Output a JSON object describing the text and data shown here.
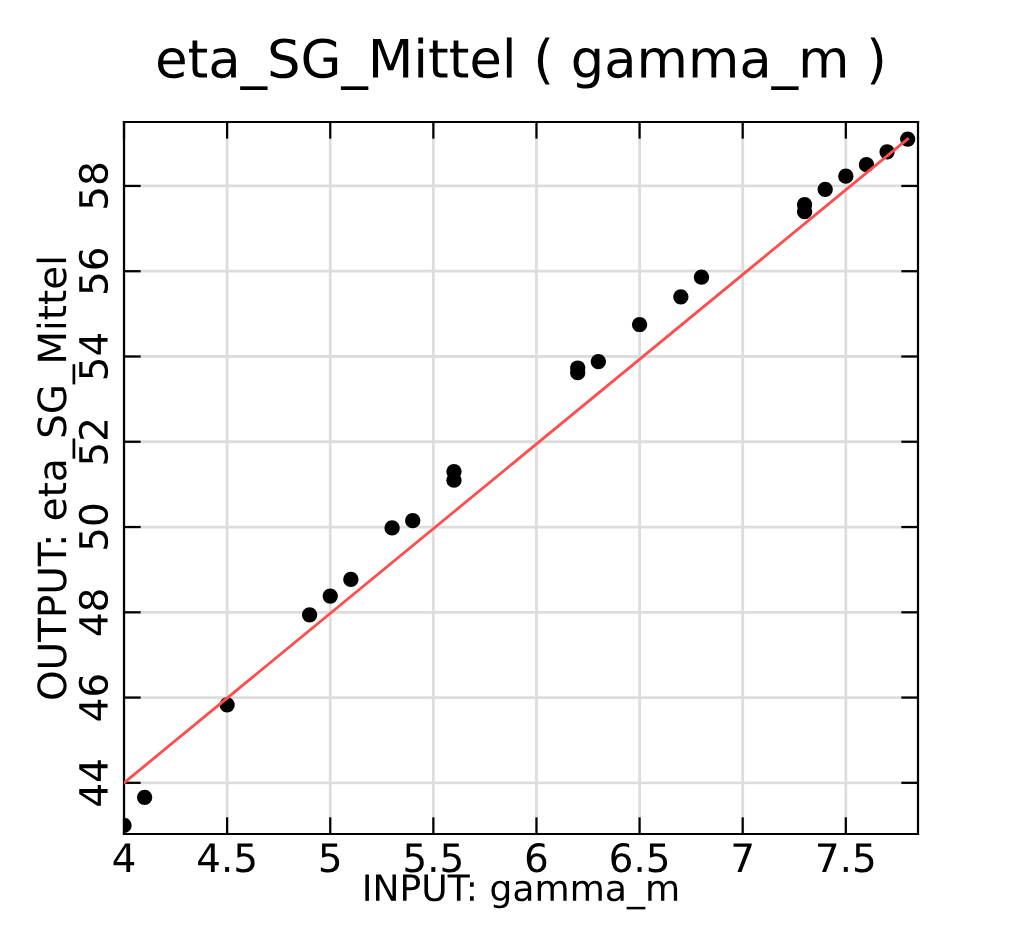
{
  "chart_data": {
    "type": "scatter",
    "title": "eta_SG_Mittel ( gamma_m )",
    "xlabel": "INPUT: gamma_m",
    "ylabel": "OUTPUT: eta_SG_Mittel",
    "xlim": [
      4,
      7.85
    ],
    "ylim": [
      42.8,
      59.5
    ],
    "xticks": [
      4,
      4.5,
      5,
      5.5,
      6,
      6.5,
      7,
      7.5
    ],
    "yticks": [
      44,
      46,
      48,
      50,
      52,
      54,
      56,
      58
    ],
    "grid": true,
    "series": [
      {
        "marker": "circle",
        "color": "#000000",
        "x": [
          4.0,
          4.1,
          4.5,
          4.9,
          5.0,
          5.1,
          5.3,
          5.4,
          5.6,
          5.6,
          6.2,
          6.2,
          6.3,
          6.5,
          6.7,
          6.8,
          7.3,
          7.3,
          7.4,
          7.5,
          7.6,
          7.7,
          7.8
        ],
        "values": [
          43.0,
          43.66,
          45.83,
          47.94,
          48.38,
          48.77,
          49.98,
          50.15,
          51.1,
          51.3,
          53.62,
          53.73,
          53.88,
          54.75,
          55.4,
          55.86,
          57.4,
          57.56,
          57.92,
          58.23,
          58.5,
          58.8,
          59.1
        ]
      },
      {
        "type": "line",
        "color": "#ff4d4d",
        "x": [
          4.0,
          7.8
        ],
        "values": [
          44.0,
          59.1
        ]
      }
    ]
  }
}
